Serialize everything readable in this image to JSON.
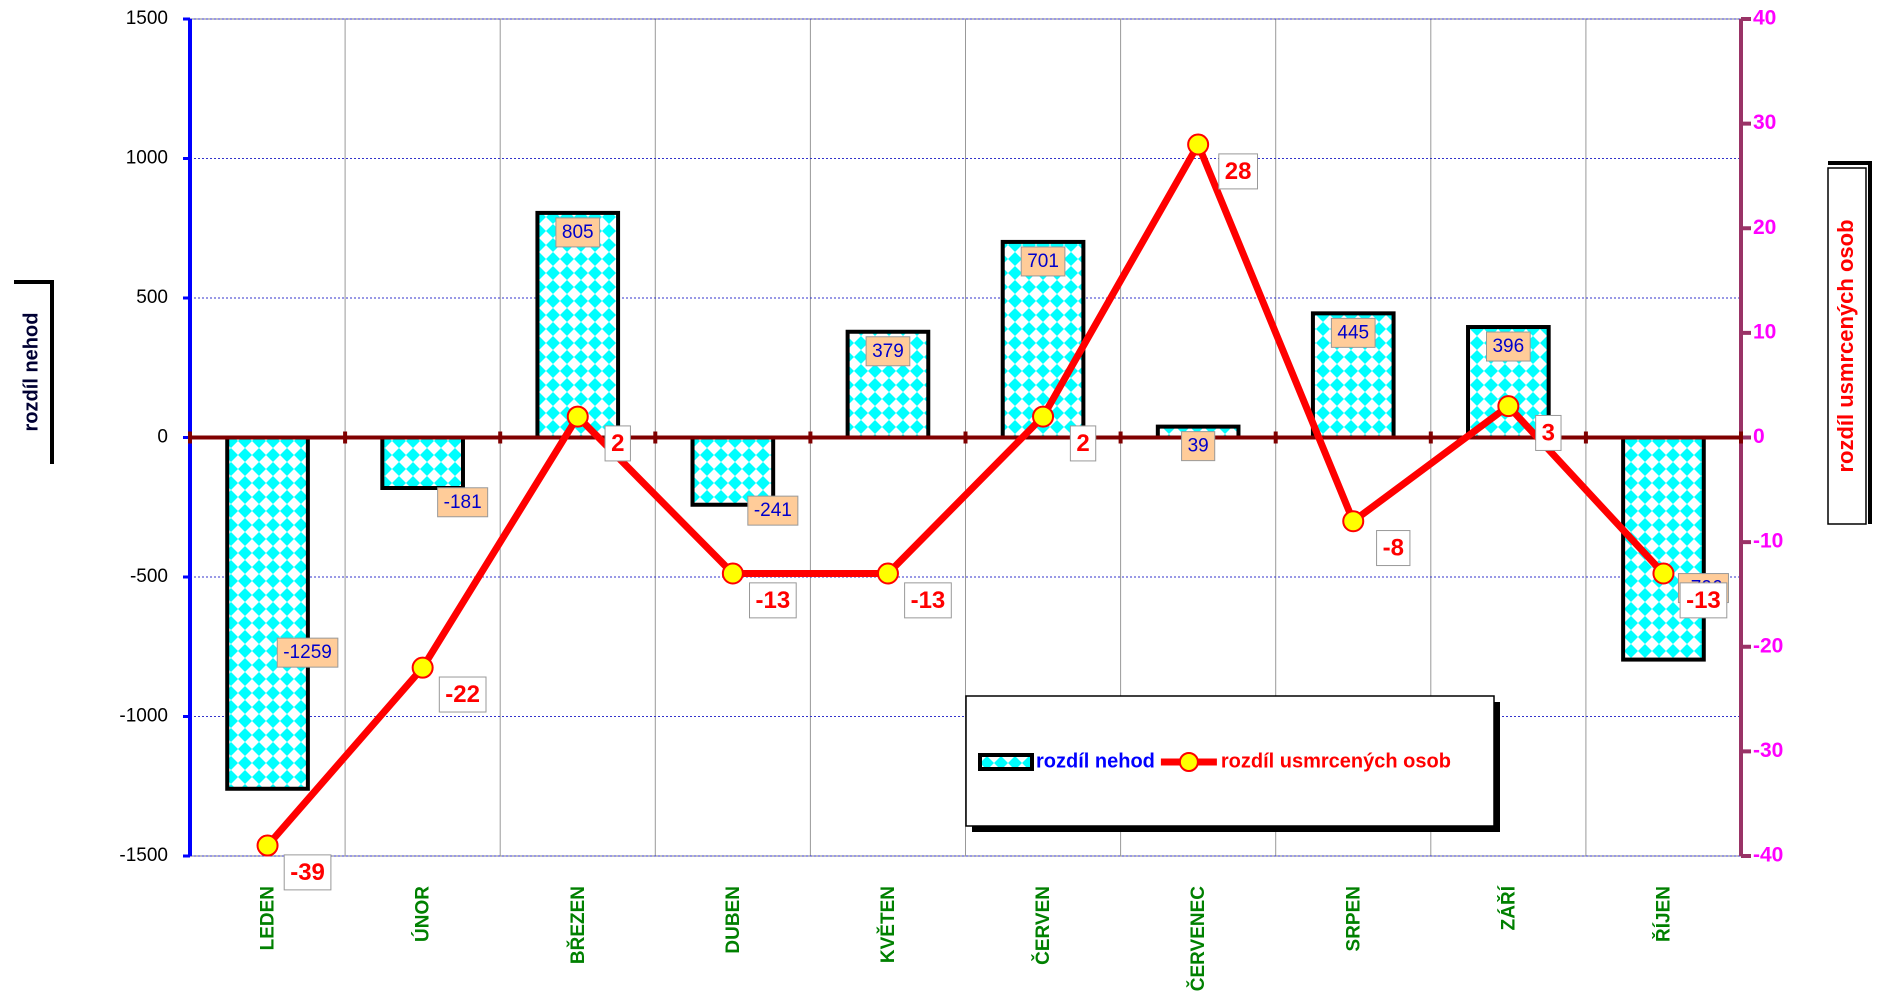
{
  "chart_data": {
    "type": "combo",
    "categories": [
      "LEDEN",
      "ÚNOR",
      "BŘEZEN",
      "DUBEN",
      "KVĚTEN",
      "ČERVEN",
      "ČERVENEC",
      "SRPEN",
      "ZÁŘÍ",
      "ŘÍJEN"
    ],
    "series": [
      {
        "name": "rozdíl nehod",
        "type": "bar",
        "color": "#00ffff",
        "values": [
          -1259,
          -181,
          805,
          -241,
          379,
          701,
          39,
          445,
          396,
          -796
        ]
      },
      {
        "name": "rozdíl usmrcených osob",
        "type": "line",
        "axis": "y2",
        "color": "#ff0000",
        "values": [
          -39,
          -22,
          2,
          -13,
          -13,
          2,
          28,
          -8,
          3,
          -13
        ]
      }
    ],
    "ylabel": "rozdíl nehod",
    "y2label": "rozdíl usmrcených osob",
    "ylim": [
      -1500,
      1500
    ],
    "yticks": [
      -1500,
      -1000,
      -500,
      0,
      500,
      1000,
      1500
    ],
    "y2lim": [
      -40,
      40
    ],
    "y2ticks": [
      -40,
      -30,
      -20,
      -10,
      0,
      10,
      20,
      30,
      40
    ],
    "grid": true,
    "legend": "bottom-right"
  }
}
